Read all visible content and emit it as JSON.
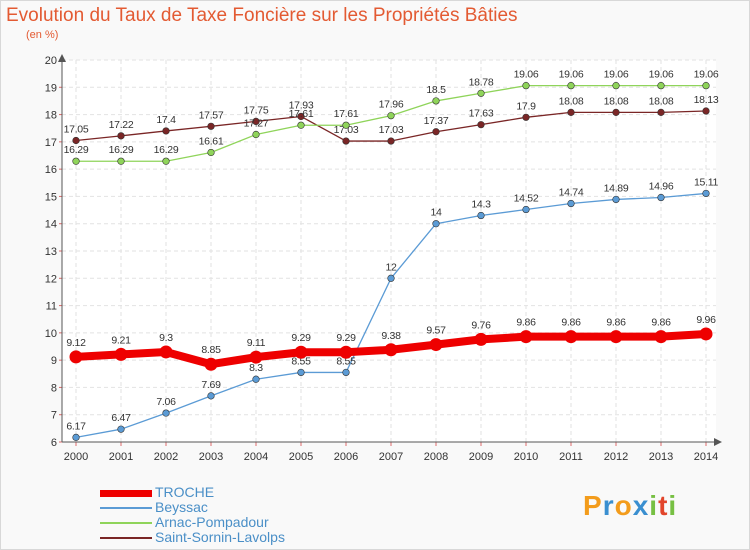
{
  "header": {
    "title": "Evolution du Taux de Taxe Foncière sur les Propriétés Bâties",
    "subtitle": "(en %)"
  },
  "logo": {
    "letters": [
      "P",
      "r",
      "o",
      "x",
      "i",
      "t",
      "i"
    ],
    "colors": [
      "#f39c1c",
      "#3a8fd0",
      "#f39c1c",
      "#3a8fd0",
      "#77c043",
      "#e2452b",
      "#77c043"
    ]
  },
  "chart_data": {
    "type": "line",
    "title": "Evolution du Taux de Taxe Foncière sur les Propriétés Bâties",
    "ylabel": "(en %)",
    "xlabel": "",
    "x": [
      "2000",
      "2001",
      "2002",
      "2003",
      "2004",
      "2005",
      "2006",
      "2007",
      "2008",
      "2009",
      "2010",
      "2011",
      "2012",
      "2013",
      "2014"
    ],
    "ylim": [
      6,
      20
    ],
    "yticks": [
      "6",
      "7",
      "8",
      "9",
      "10",
      "11",
      "12",
      "13",
      "14",
      "15",
      "16",
      "17",
      "18",
      "19",
      "20"
    ],
    "grid": true,
    "series": [
      {
        "name": "Saint-Sornin-Lavolps",
        "color": "#7a2626",
        "values": [
          17.05,
          17.22,
          17.4,
          17.57,
          17.75,
          17.93,
          17.03,
          17.03,
          17.37,
          17.63,
          17.9,
          18.08,
          18.08,
          18.08,
          18.13
        ],
        "labels": [
          "17.05",
          "17.22",
          "17.4",
          "17.57",
          "17.75",
          "17.93",
          "17.03",
          "17.03",
          "17.37",
          "17.63",
          "17.9",
          "18.08",
          "18.08",
          "18.08",
          "18.13"
        ],
        "label_pos": [
          "above",
          "above",
          "above",
          "above",
          "above",
          "above",
          "above",
          "above",
          "above",
          "above",
          "above",
          "above",
          "above",
          "above",
          "above"
        ]
      },
      {
        "name": "Arnac-Pompadour",
        "color": "#8fd45a",
        "values": [
          16.29,
          16.29,
          16.29,
          16.61,
          17.27,
          17.61,
          17.61,
          17.96,
          18.5,
          18.78,
          19.06,
          19.06,
          19.06,
          19.06,
          19.06
        ],
        "labels": [
          "16.29",
          "16.29",
          "16.29",
          "16.61",
          "17.27",
          "17.61",
          "17.61",
          "17.96",
          "18.5",
          "18.78",
          "19.06",
          "19.06",
          "19.06",
          "19.06",
          "19.06"
        ],
        "label_pos": [
          "above",
          "above",
          "above",
          "above",
          "above",
          "above",
          "above",
          "above",
          "above",
          "above",
          "above",
          "above",
          "above",
          "above",
          "above"
        ]
      },
      {
        "name": "Beyssac",
        "color": "#5b9bd5",
        "values": [
          6.17,
          6.47,
          7.06,
          7.69,
          8.3,
          8.55,
          8.55,
          12,
          14,
          14.3,
          14.52,
          14.74,
          14.89,
          14.96,
          15.11
        ],
        "labels": [
          "6.17",
          "6.47",
          "7.06",
          "7.69",
          "8.3",
          "8.55",
          "8.55",
          "12",
          "14",
          "14.3",
          "14.52",
          "14.74",
          "14.89",
          "14.96",
          "15.11"
        ],
        "label_pos": [
          "above",
          "above",
          "above",
          "above",
          "above",
          "above",
          "above",
          "above",
          "above",
          "above",
          "above",
          "above",
          "above",
          "above",
          "above"
        ]
      },
      {
        "name": "TROCHE",
        "color": "#ee0000",
        "values": [
          9.12,
          9.21,
          9.3,
          8.85,
          9.11,
          9.29,
          9.29,
          9.38,
          9.57,
          9.76,
          9.86,
          9.86,
          9.86,
          9.86,
          9.96
        ],
        "labels": [
          "9.12",
          "9.21",
          "9.3",
          "8.85",
          "9.11",
          "9.29",
          "9.29",
          "9.38",
          "9.57",
          "9.76",
          "9.86",
          "9.86",
          "9.86",
          "9.86",
          "9.96"
        ],
        "label_pos": [
          "above",
          "above",
          "above",
          "above",
          "above",
          "above",
          "above",
          "above",
          "above",
          "above",
          "above",
          "above",
          "above",
          "above",
          "above"
        ]
      }
    ],
    "legend": {
      "position": "bottom-left",
      "order": [
        "TROCHE",
        "Beyssac",
        "Arnac-Pompadour",
        "Saint-Sornin-Lavolps"
      ]
    }
  }
}
